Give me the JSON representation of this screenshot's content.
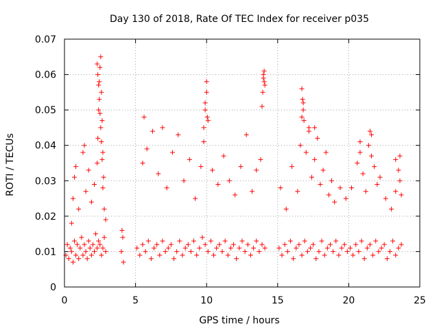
{
  "chart_data": {
    "type": "scatter",
    "title": "Day 130 of 2018, Rate Of TEC Index for receiver p035",
    "xlabel": "GPS time / hours",
    "ylabel": "ROTI / TECUs",
    "xlim": [
      0,
      25
    ],
    "ylim": [
      0,
      0.07
    ],
    "grid": true,
    "x_ticks": [
      0,
      5,
      10,
      15,
      20,
      25
    ],
    "x_tick_labels": [
      "0",
      "5",
      "10",
      "15",
      "20",
      "25"
    ],
    "y_ticks": [
      0,
      0.01,
      0.02,
      0.03,
      0.04,
      0.05,
      0.06,
      0.07
    ],
    "y_tick_labels": [
      "0",
      "0.01",
      "0.02",
      "0.03",
      "0.04",
      "0.05",
      "0.06",
      "0.07"
    ],
    "marker": "plus",
    "series": [
      {
        "color": "#ff0000",
        "x": [
          0.1,
          0.2,
          0.3,
          0.4,
          0.5,
          0.6,
          0.7,
          0.8,
          0.9,
          1.0,
          1.1,
          1.2,
          1.3,
          1.4,
          1.5,
          1.6,
          1.7,
          1.8,
          1.9,
          2.0,
          2.1,
          2.2,
          2.3,
          2.4,
          2.5,
          2.6,
          2.7,
          2.8,
          2.9,
          0.5,
          0.6,
          0.7,
          0.8,
          1.0,
          1.3,
          1.4,
          1.5,
          1.7,
          1.9,
          2.1,
          2.3,
          2.35,
          2.4,
          2.45,
          2.5,
          2.55,
          2.6,
          2.65,
          2.7,
          2.75,
          2.8,
          2.9,
          2.3,
          2.35,
          2.4,
          2.45,
          2.5,
          2.55,
          2.6,
          2.65,
          2.7,
          4.0,
          4.05,
          4.1,
          4.15,
          5.1,
          5.3,
          5.5,
          5.7,
          5.9,
          6.1,
          6.3,
          6.5,
          6.7,
          6.9,
          7.1,
          7.3,
          7.5,
          7.7,
          7.9,
          8.1,
          8.3,
          8.5,
          8.7,
          8.9,
          9.1,
          9.3,
          9.5,
          9.7,
          9.9,
          10.1,
          10.3,
          10.5,
          10.7,
          10.9,
          11.1,
          11.3,
          11.5,
          11.7,
          11.9,
          12.1,
          12.3,
          12.5,
          12.7,
          12.9,
          13.1,
          13.3,
          13.5,
          13.7,
          13.9,
          14.1,
          5.5,
          5.6,
          5.8,
          6.2,
          6.6,
          6.9,
          7.2,
          7.6,
          8.0,
          8.4,
          8.8,
          9.2,
          9.6,
          9.8,
          9.9,
          10.0,
          10.1,
          10.4,
          10.8,
          11.2,
          11.6,
          12.0,
          12.4,
          12.8,
          13.2,
          13.5,
          13.8,
          13.9,
          14.0,
          14.05,
          9.8,
          9.9,
          10.0,
          10.05,
          13.95,
          14.0,
          14.05,
          14.1,
          15.1,
          15.3,
          15.5,
          15.7,
          15.9,
          16.1,
          16.3,
          16.5,
          16.7,
          16.9,
          17.1,
          17.3,
          17.5,
          17.7,
          17.9,
          18.1,
          18.3,
          18.5,
          18.7,
          18.9,
          19.1,
          19.3,
          19.5,
          19.7,
          19.9,
          15.2,
          15.6,
          16.0,
          16.4,
          16.6,
          16.7,
          16.8,
          17.0,
          17.2,
          17.4,
          17.6,
          17.8,
          18.0,
          18.2,
          18.4,
          18.6,
          18.8,
          19.0,
          19.4,
          19.8,
          16.7,
          16.75,
          16.8,
          16.85,
          17.2,
          17.6,
          20.1,
          20.3,
          20.5,
          20.7,
          20.9,
          21.1,
          21.3,
          21.5,
          21.7,
          21.9,
          22.1,
          22.3,
          22.5,
          22.7,
          22.9,
          23.1,
          23.3,
          23.5,
          23.7,
          20.2,
          20.6,
          20.8,
          21.0,
          21.2,
          21.4,
          21.6,
          21.8,
          22.0,
          22.2,
          22.6,
          23.0,
          23.3,
          23.6,
          23.7,
          20.8,
          21.5,
          21.6,
          23.3,
          23.5,
          23.6
        ],
        "y": [
          0.009,
          0.012,
          0.008,
          0.011,
          0.01,
          0.007,
          0.013,
          0.009,
          0.012,
          0.008,
          0.011,
          0.014,
          0.009,
          0.012,
          0.01,
          0.008,
          0.013,
          0.011,
          0.009,
          0.012,
          0.01,
          0.015,
          0.011,
          0.013,
          0.012,
          0.009,
          0.011,
          0.014,
          0.01,
          0.018,
          0.025,
          0.031,
          0.034,
          0.022,
          0.038,
          0.04,
          0.027,
          0.033,
          0.024,
          0.029,
          0.035,
          0.042,
          0.05,
          0.058,
          0.062,
          0.065,
          0.055,
          0.047,
          0.038,
          0.031,
          0.022,
          0.019,
          0.063,
          0.06,
          0.057,
          0.053,
          0.049,
          0.045,
          0.041,
          0.036,
          0.028,
          0.01,
          0.016,
          0.014,
          0.007,
          0.011,
          0.009,
          0.012,
          0.01,
          0.013,
          0.008,
          0.011,
          0.012,
          0.009,
          0.013,
          0.01,
          0.011,
          0.012,
          0.008,
          0.01,
          0.013,
          0.009,
          0.011,
          0.012,
          0.01,
          0.013,
          0.009,
          0.011,
          0.014,
          0.012,
          0.01,
          0.013,
          0.009,
          0.011,
          0.012,
          0.01,
          0.013,
          0.009,
          0.011,
          0.012,
          0.008,
          0.011,
          0.013,
          0.01,
          0.012,
          0.009,
          0.011,
          0.013,
          0.01,
          0.012,
          0.011,
          0.035,
          0.048,
          0.039,
          0.044,
          0.032,
          0.045,
          0.028,
          0.038,
          0.043,
          0.03,
          0.036,
          0.025,
          0.034,
          0.041,
          0.05,
          0.058,
          0.047,
          0.033,
          0.029,
          0.037,
          0.03,
          0.026,
          0.034,
          0.043,
          0.027,
          0.033,
          0.036,
          0.051,
          0.06,
          0.058,
          0.045,
          0.052,
          0.055,
          0.048,
          0.055,
          0.059,
          0.061,
          0.057,
          0.011,
          0.009,
          0.012,
          0.01,
          0.013,
          0.008,
          0.011,
          0.012,
          0.009,
          0.013,
          0.01,
          0.011,
          0.012,
          0.008,
          0.01,
          0.013,
          0.009,
          0.011,
          0.012,
          0.01,
          0.013,
          0.009,
          0.011,
          0.012,
          0.01,
          0.028,
          0.022,
          0.034,
          0.027,
          0.04,
          0.048,
          0.052,
          0.038,
          0.045,
          0.031,
          0.036,
          0.042,
          0.029,
          0.033,
          0.038,
          0.026,
          0.03,
          0.024,
          0.028,
          0.025,
          0.056,
          0.053,
          0.05,
          0.047,
          0.044,
          0.045,
          0.011,
          0.009,
          0.012,
          0.01,
          0.013,
          0.008,
          0.011,
          0.012,
          0.009,
          0.013,
          0.01,
          0.011,
          0.012,
          0.008,
          0.01,
          0.013,
          0.009,
          0.011,
          0.012,
          0.028,
          0.035,
          0.038,
          0.032,
          0.027,
          0.04,
          0.043,
          0.034,
          0.029,
          0.031,
          0.025,
          0.022,
          0.027,
          0.03,
          0.026,
          0.041,
          0.044,
          0.037,
          0.036,
          0.033,
          0.037
        ]
      }
    ]
  }
}
